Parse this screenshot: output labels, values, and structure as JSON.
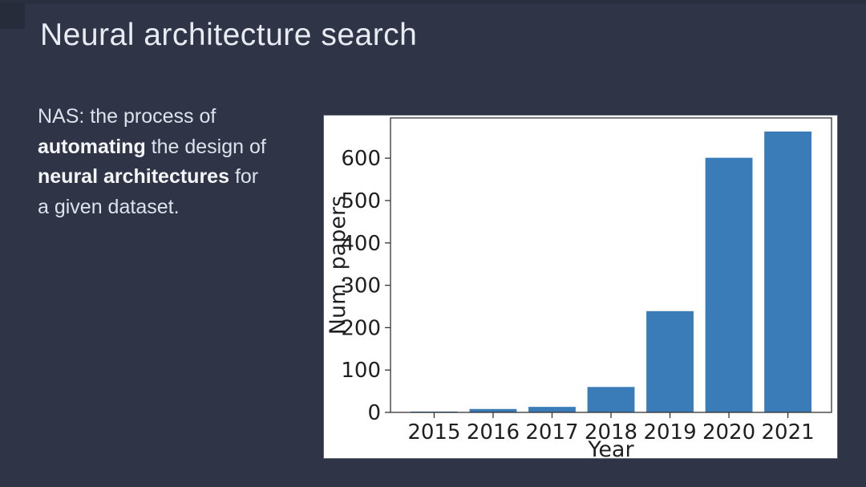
{
  "slide": {
    "title": "Neural architecture search",
    "body": {
      "lines": [
        [
          {
            "t": "NAS: the process of",
            "b": false
          }
        ],
        [
          {
            "t": "automating",
            "b": true
          },
          {
            "t": " the design of",
            "b": false
          }
        ],
        [
          {
            "t": "neural architectures",
            "b": true
          },
          {
            "t": " for",
            "b": false
          }
        ],
        [
          {
            "t": "a given dataset.",
            "b": false
          }
        ]
      ]
    },
    "colors": {
      "background": "#2f3447",
      "title_text": "#e8ebf1",
      "body_text": "#dde2eb",
      "panel": "#ffffff",
      "bar": "#3a7cb8",
      "axis": "#333333",
      "tick_text": "#1f1f1f"
    }
  },
  "chart_data": {
    "type": "bar",
    "title": "",
    "categories": [
      "2015",
      "2016",
      "2017",
      "2018",
      "2019",
      "2020",
      "2021"
    ],
    "values": [
      2,
      8,
      13,
      60,
      239,
      601,
      663
    ],
    "xlabel": "Year",
    "ylabel": "Num. papers",
    "ylim": [
      0,
      695
    ],
    "yticks": [
      0,
      100,
      200,
      300,
      400,
      500,
      600
    ],
    "bar_color": "#3a7cb8",
    "bar_width_fraction": 0.8,
    "grid": false,
    "legend": false
  }
}
